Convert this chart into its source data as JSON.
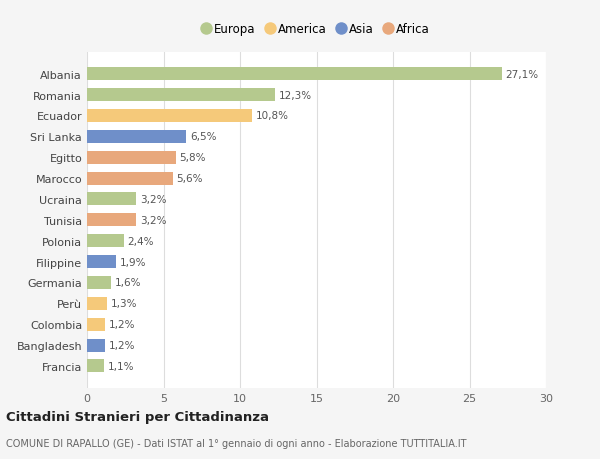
{
  "categories": [
    "Francia",
    "Bangladesh",
    "Colombia",
    "Perù",
    "Germania",
    "Filippine",
    "Polonia",
    "Tunisia",
    "Ucraina",
    "Marocco",
    "Egitto",
    "Sri Lanka",
    "Ecuador",
    "Romania",
    "Albania"
  ],
  "values": [
    1.1,
    1.2,
    1.2,
    1.3,
    1.6,
    1.9,
    2.4,
    3.2,
    3.2,
    5.6,
    5.8,
    6.5,
    10.8,
    12.3,
    27.1
  ],
  "labels": [
    "1,1%",
    "1,2%",
    "1,2%",
    "1,3%",
    "1,6%",
    "1,9%",
    "2,4%",
    "3,2%",
    "3,2%",
    "5,6%",
    "5,8%",
    "6,5%",
    "10,8%",
    "12,3%",
    "27,1%"
  ],
  "colors": [
    "#b5c98e",
    "#6f8fc9",
    "#f5c97a",
    "#f5c97a",
    "#b5c98e",
    "#6f8fc9",
    "#b5c98e",
    "#e8a87c",
    "#b5c98e",
    "#e8a87c",
    "#e8a87c",
    "#6f8fc9",
    "#f5c97a",
    "#b5c98e",
    "#b5c98e"
  ],
  "legend": [
    {
      "label": "Europa",
      "color": "#b5c98e"
    },
    {
      "label": "America",
      "color": "#f5c97a"
    },
    {
      "label": "Asia",
      "color": "#6f8fc9"
    },
    {
      "label": "Africa",
      "color": "#e8a87c"
    }
  ],
  "xlim": [
    0,
    30
  ],
  "xticks": [
    0,
    5,
    10,
    15,
    20,
    25,
    30
  ],
  "title": "Cittadini Stranieri per Cittadinanza",
  "subtitle": "COMUNE DI RAPALLO (GE) - Dati ISTAT al 1° gennaio di ogni anno - Elaborazione TUTTITALIA.IT",
  "background_color": "#f5f5f5",
  "bar_background": "#ffffff",
  "grid_color": "#dddddd"
}
